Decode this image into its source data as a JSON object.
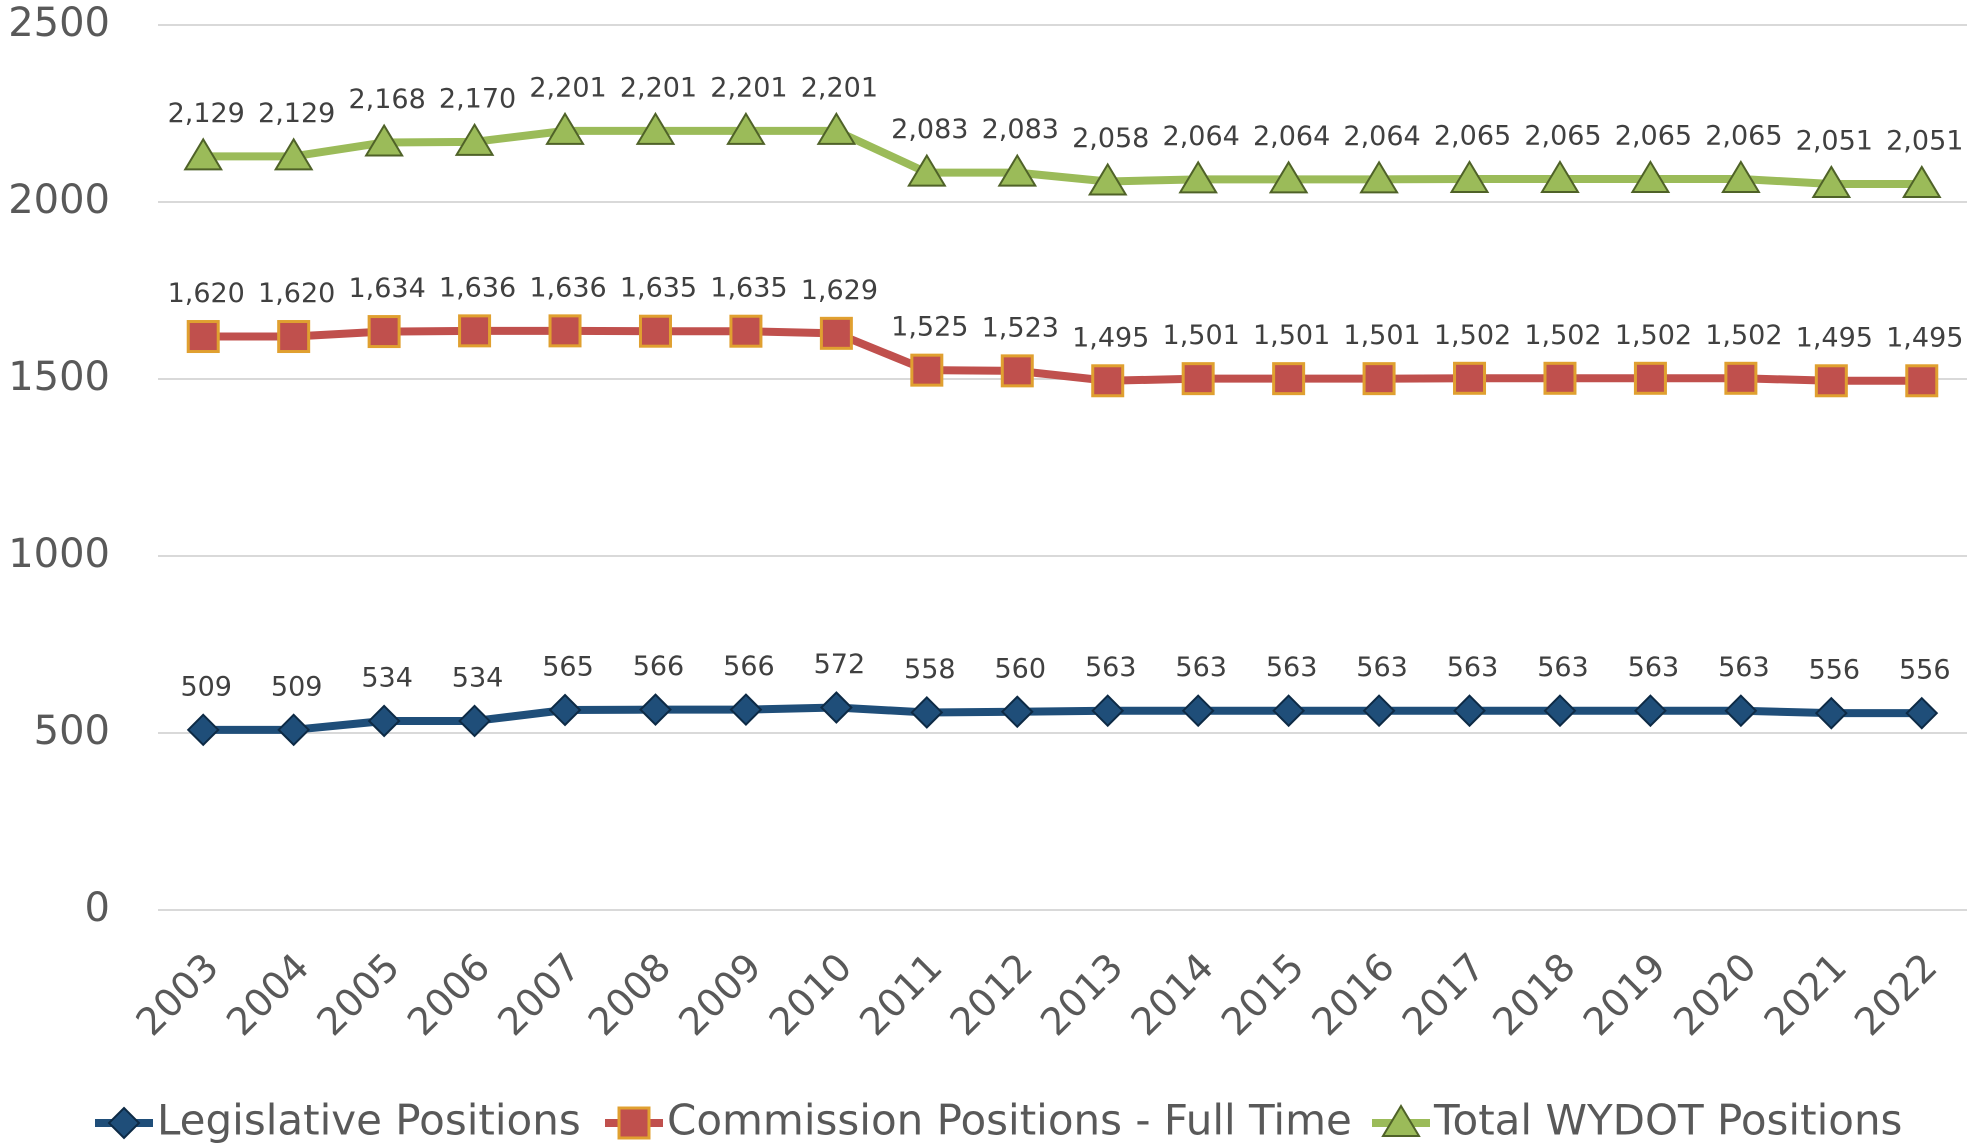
{
  "chart_data": {
    "type": "line",
    "categories": [
      "2003",
      "2004",
      "2005",
      "2006",
      "2007",
      "2008",
      "2009",
      "2010",
      "2011",
      "2012",
      "2013",
      "2014",
      "2015",
      "2016",
      "2017",
      "2018",
      "2019",
      "2020",
      "2021",
      "2022"
    ],
    "series": [
      {
        "name": "Legislative Positions",
        "color": "#1f4e79",
        "marker": "diamond",
        "values": [
          509,
          509,
          534,
          534,
          565,
          566,
          566,
          572,
          558,
          560,
          563,
          563,
          563,
          563,
          563,
          563,
          563,
          563,
          556,
          556
        ],
        "value_labels": [
          "509",
          "509",
          "534",
          "534",
          "565",
          "566",
          "566",
          "572",
          "558",
          "560",
          "563",
          "563",
          "563",
          "563",
          "563",
          "563",
          "563",
          "563",
          "556",
          "556"
        ]
      },
      {
        "name": "Commission Positions - Full Time",
        "color": "#c0504d",
        "marker": "square",
        "values": [
          1620,
          1620,
          1634,
          1636,
          1636,
          1635,
          1635,
          1629,
          1525,
          1523,
          1495,
          1501,
          1501,
          1501,
          1502,
          1502,
          1502,
          1502,
          1495,
          1495
        ],
        "value_labels": [
          "1,620",
          "1,620",
          "1,634",
          "1,636",
          "1,636",
          "1,635",
          "1,635",
          "1,629",
          "1,525",
          "1,523",
          "1,495",
          "1,501",
          "1,501",
          "1,501",
          "1,502",
          "1,502",
          "1,502",
          "1,502",
          "1,495",
          "1,495"
        ]
      },
      {
        "name": "Total WYDOT Positions",
        "color": "#9bbb59",
        "marker": "triangle",
        "values": [
          2129,
          2129,
          2168,
          2170,
          2201,
          2201,
          2201,
          2201,
          2083,
          2083,
          2058,
          2064,
          2064,
          2064,
          2065,
          2065,
          2065,
          2065,
          2051,
          2051
        ],
        "value_labels": [
          "2,129",
          "2,129",
          "2,168",
          "2,170",
          "2,201",
          "2,201",
          "2,201",
          "2,201",
          "2,083",
          "2,083",
          "2,058",
          "2,064",
          "2,064",
          "2,064",
          "2,065",
          "2,065",
          "2,065",
          "2,065",
          "2,051",
          "2,051"
        ]
      }
    ],
    "ylim": [
      0,
      2500
    ],
    "yticks": [
      0,
      500,
      1000,
      1500,
      2000,
      2500
    ],
    "grid": true,
    "legend": "bottom"
  }
}
